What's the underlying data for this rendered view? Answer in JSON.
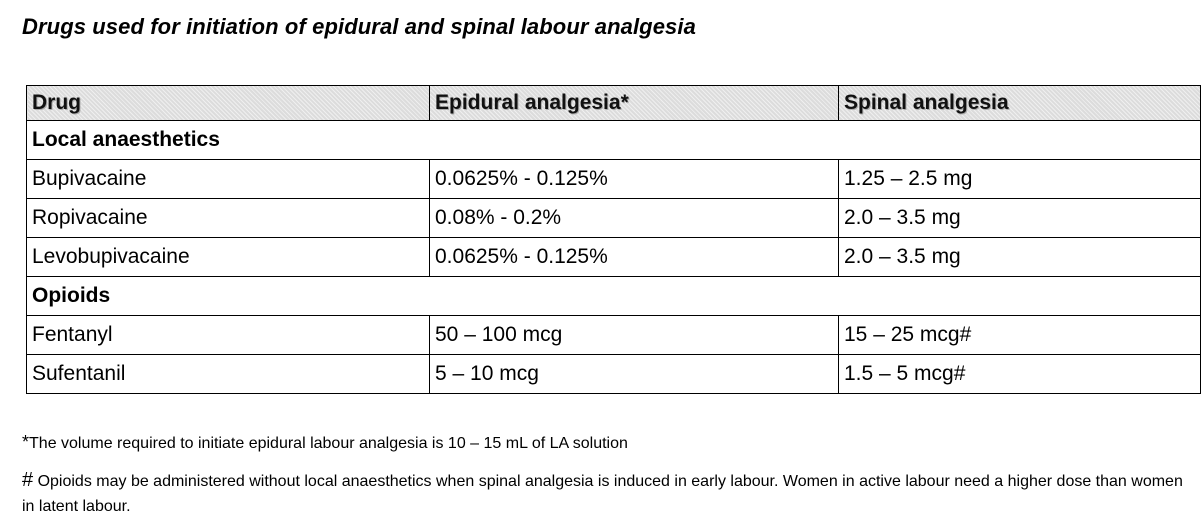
{
  "title": "Drugs used for initiation of epidural and spinal labour analgesia",
  "table": {
    "headers": [
      "Drug",
      "Epidural analgesia*",
      "Spinal analgesia"
    ],
    "sections": [
      {
        "label": "Local anaesthetics",
        "rows": [
          [
            "Bupivacaine",
            "0.0625% - 0.125%",
            "1.25 – 2.5 mg"
          ],
          [
            "Ropivacaine",
            "0.08% - 0.2%",
            "2.0 – 3.5 mg"
          ],
          [
            "Levobupivacaine",
            "0.0625% - 0.125%",
            "2.0 – 3.5 mg"
          ]
        ]
      },
      {
        "label": "Opioids",
        "rows": [
          [
            "Fentanyl",
            "50 – 100 mcg",
            "15 – 25 mcg#"
          ],
          [
            "Sufentanil",
            "5 – 10 mcg",
            "1.5 – 5 mcg#"
          ]
        ]
      }
    ]
  },
  "footnotes": {
    "note1_mark": "*",
    "note1": "The volume required to initiate epidural labour analgesia is 10 – 15 mL of LA solution",
    "note2_mark": "#",
    "note2": " Opioids may be administered without local anaesthetics when spinal analgesia is induced in early labour. Women in active labour need a higher dose than women in latent labour."
  }
}
